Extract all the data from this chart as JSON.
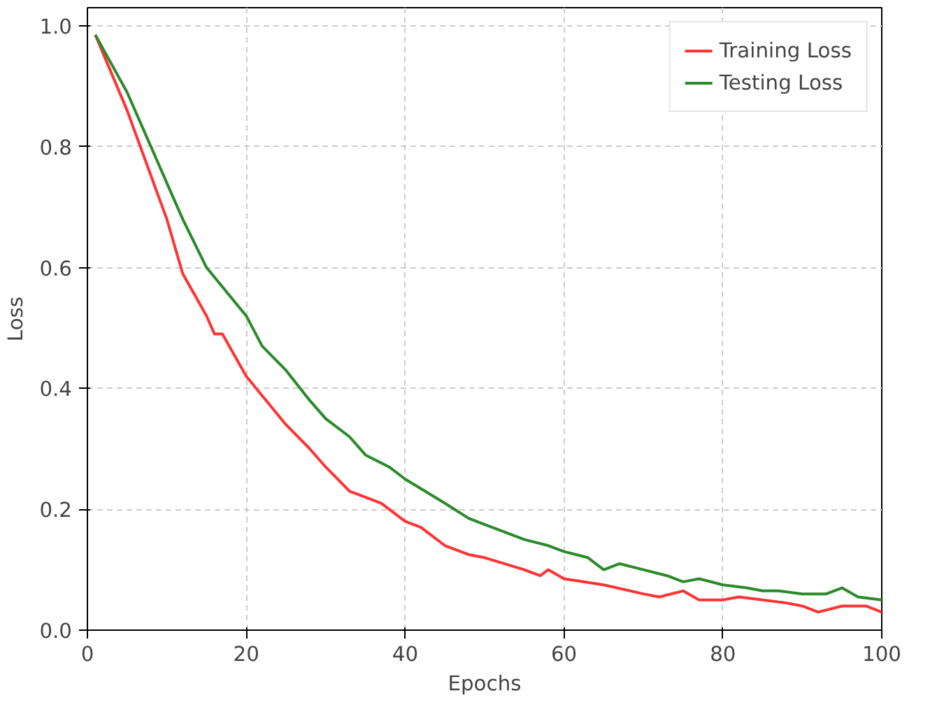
{
  "chart_data": {
    "type": "line",
    "xlabel": "Epochs",
    "ylabel": "Loss",
    "xlim": [
      0,
      100
    ],
    "ylim": [
      0,
      1.03
    ],
    "xticks": [
      0,
      20,
      40,
      60,
      80,
      100
    ],
    "yticks": [
      {
        "value": 0,
        "label": "0.0"
      },
      {
        "value": 0.2,
        "label": "0.2"
      },
      {
        "value": 0.4,
        "label": "0.4"
      },
      {
        "value": 0.6,
        "label": "0.6"
      },
      {
        "value": 0.8,
        "label": "0.8"
      },
      {
        "value": 1.0,
        "label": "1.0"
      }
    ],
    "grid": true,
    "legend": "top right",
    "line_style": "solid",
    "marker": "none",
    "series": [
      {
        "name": "Training Loss",
        "color": "#ff3333",
        "x": [
          1,
          5,
          10,
          12,
          15,
          16,
          17,
          20,
          25,
          28,
          30,
          33,
          35,
          37,
          40,
          42,
          45,
          48,
          50,
          55,
          57,
          58,
          60,
          65,
          70,
          72,
          75,
          77,
          80,
          82,
          85,
          88,
          90,
          92,
          95,
          98,
          100
        ],
        "values": [
          0.985,
          0.86,
          0.68,
          0.59,
          0.52,
          0.49,
          0.49,
          0.42,
          0.34,
          0.3,
          0.27,
          0.23,
          0.22,
          0.21,
          0.18,
          0.17,
          0.14,
          0.125,
          0.12,
          0.1,
          0.09,
          0.1,
          0.085,
          0.075,
          0.06,
          0.055,
          0.065,
          0.05,
          0.05,
          0.055,
          0.05,
          0.045,
          0.04,
          0.03,
          0.04,
          0.04,
          0.03
        ]
      },
      {
        "name": "Testing Loss",
        "color": "#2a8a2a",
        "x": [
          1,
          5,
          10,
          12,
          15,
          20,
          22,
          25,
          28,
          30,
          33,
          35,
          38,
          40,
          45,
          48,
          50,
          55,
          58,
          60,
          63,
          65,
          67,
          70,
          73,
          75,
          77,
          80,
          83,
          85,
          87,
          90,
          93,
          95,
          97,
          100
        ],
        "values": [
          0.985,
          0.89,
          0.74,
          0.68,
          0.6,
          0.52,
          0.47,
          0.43,
          0.38,
          0.35,
          0.32,
          0.29,
          0.27,
          0.25,
          0.21,
          0.185,
          0.175,
          0.15,
          0.14,
          0.13,
          0.12,
          0.1,
          0.11,
          0.1,
          0.09,
          0.08,
          0.085,
          0.075,
          0.07,
          0.065,
          0.065,
          0.06,
          0.06,
          0.07,
          0.055,
          0.05
        ]
      }
    ]
  }
}
